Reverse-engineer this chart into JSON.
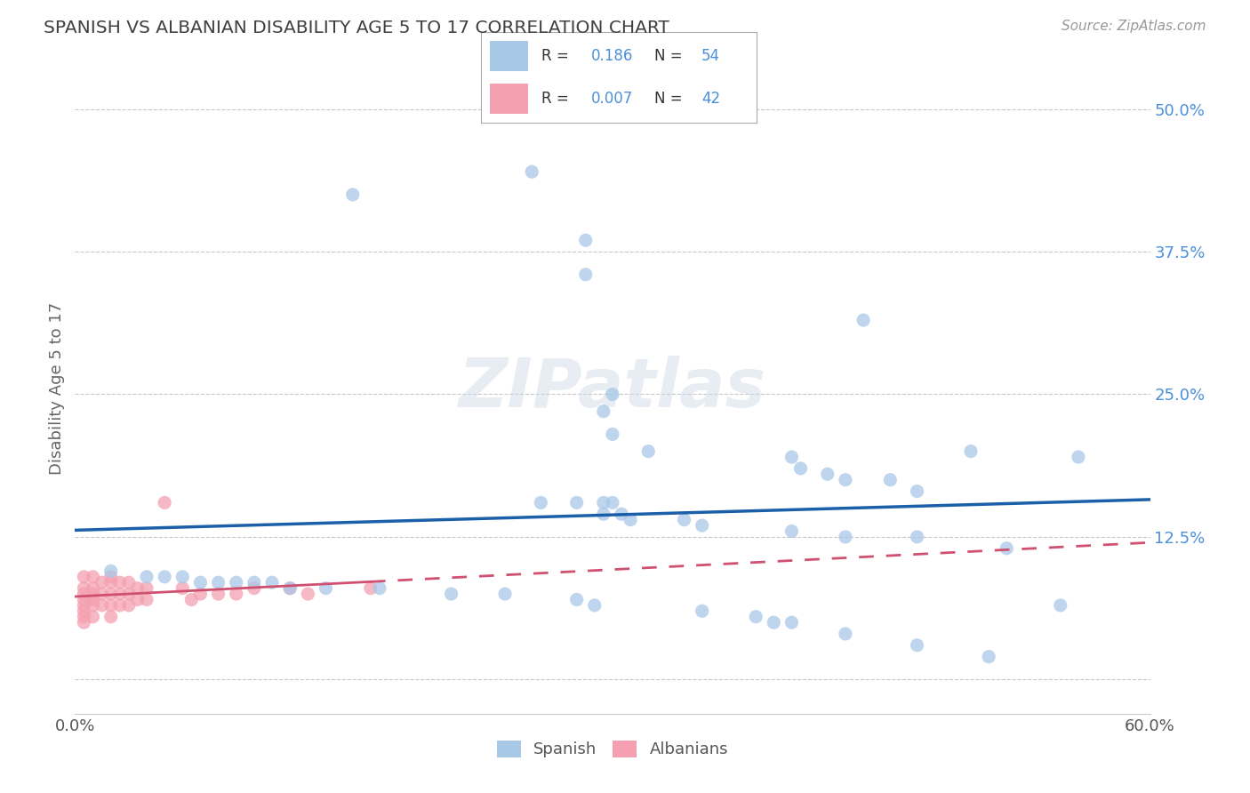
{
  "title": "SPANISH VS ALBANIAN DISABILITY AGE 5 TO 17 CORRELATION CHART",
  "source": "Source: ZipAtlas.com",
  "ylabel": "Disability Age 5 to 17",
  "xlim": [
    0.0,
    0.6
  ],
  "ylim": [
    -0.03,
    0.54
  ],
  "xticks": [
    0.0,
    0.1,
    0.2,
    0.3,
    0.4,
    0.5,
    0.6
  ],
  "xticklabels": [
    "0.0%",
    "",
    "",
    "",
    "",
    "",
    "60.0%"
  ],
  "ytick_positions": [
    0.0,
    0.125,
    0.25,
    0.375,
    0.5
  ],
  "ytick_labels": [
    "",
    "12.5%",
    "25.0%",
    "37.5%",
    "50.0%"
  ],
  "spanish_R": 0.186,
  "spanish_N": 54,
  "albanian_R": 0.007,
  "albanian_N": 42,
  "spanish_color": "#a8c8e8",
  "albanian_color": "#f4a0b0",
  "spanish_line_color": "#1a5fa8",
  "albanian_line_color": "#d05070",
  "spanish_x": [
    0.155,
    0.255,
    0.285,
    0.285,
    0.44,
    0.3,
    0.295,
    0.3,
    0.32,
    0.4,
    0.405,
    0.42,
    0.43,
    0.455,
    0.47,
    0.5,
    0.295,
    0.3,
    0.26,
    0.28,
    0.295,
    0.305,
    0.31,
    0.34,
    0.35,
    0.4,
    0.43,
    0.47,
    0.52,
    0.56,
    0.02,
    0.04,
    0.05,
    0.06,
    0.07,
    0.08,
    0.09,
    0.1,
    0.11,
    0.12,
    0.14,
    0.17,
    0.21,
    0.24,
    0.28,
    0.29,
    0.35,
    0.38,
    0.39,
    0.4,
    0.43,
    0.47,
    0.51,
    0.55
  ],
  "spanish_y": [
    0.425,
    0.445,
    0.385,
    0.355,
    0.315,
    0.25,
    0.235,
    0.215,
    0.2,
    0.195,
    0.185,
    0.18,
    0.175,
    0.175,
    0.165,
    0.2,
    0.155,
    0.155,
    0.155,
    0.155,
    0.145,
    0.145,
    0.14,
    0.14,
    0.135,
    0.13,
    0.125,
    0.125,
    0.115,
    0.195,
    0.095,
    0.09,
    0.09,
    0.09,
    0.085,
    0.085,
    0.085,
    0.085,
    0.085,
    0.08,
    0.08,
    0.08,
    0.075,
    0.075,
    0.07,
    0.065,
    0.06,
    0.055,
    0.05,
    0.05,
    0.04,
    0.03,
    0.02,
    0.065
  ],
  "albanian_x": [
    0.005,
    0.005,
    0.005,
    0.005,
    0.005,
    0.005,
    0.005,
    0.005,
    0.01,
    0.01,
    0.01,
    0.01,
    0.01,
    0.01,
    0.015,
    0.015,
    0.015,
    0.02,
    0.02,
    0.02,
    0.02,
    0.02,
    0.025,
    0.025,
    0.025,
    0.03,
    0.03,
    0.03,
    0.035,
    0.035,
    0.04,
    0.04,
    0.05,
    0.06,
    0.065,
    0.07,
    0.08,
    0.09,
    0.1,
    0.12,
    0.13,
    0.165
  ],
  "albanian_y": [
    0.09,
    0.08,
    0.075,
    0.07,
    0.065,
    0.06,
    0.055,
    0.05,
    0.09,
    0.08,
    0.075,
    0.07,
    0.065,
    0.055,
    0.085,
    0.075,
    0.065,
    0.09,
    0.085,
    0.075,
    0.065,
    0.055,
    0.085,
    0.075,
    0.065,
    0.085,
    0.075,
    0.065,
    0.08,
    0.07,
    0.08,
    0.07,
    0.155,
    0.08,
    0.07,
    0.075,
    0.075,
    0.075,
    0.08,
    0.08,
    0.075,
    0.08
  ]
}
